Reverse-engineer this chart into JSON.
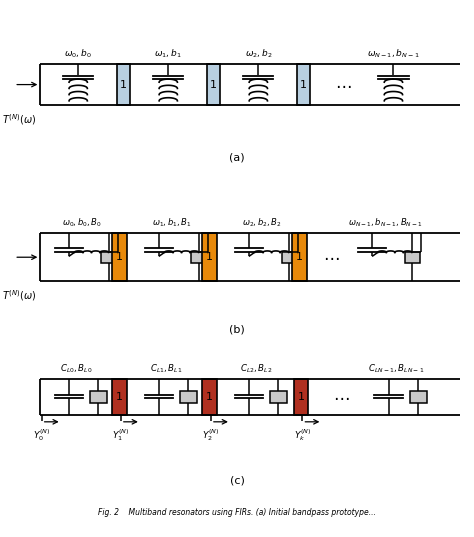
{
  "fig_width": 4.74,
  "fig_height": 5.37,
  "dpi": 100,
  "bg_color": "#ffffff",
  "blue_color": "#b8cfe0",
  "orange_color": "#e8890a",
  "red_color": "#b03020",
  "gray_color": "#c8c8c8",
  "line_color": "#111111",
  "panel_a_label": "(a)",
  "panel_b_label": "(b)",
  "panel_c_label": "(c)",
  "res_labels_a": [
    "$\\omega_0,b_0$",
    "$\\omega_1,b_1$",
    "$\\omega_2,b_2$",
    "$\\omega_{N-1},b_{N-1}$"
  ],
  "res_labels_b": [
    "$\\omega_0,b_0,B_0$",
    "$\\omega_1,b_1,B_1$",
    "$\\omega_2,b_2,B_2$",
    "$\\omega_{N-1},b_{N-1},B_{N-1}$"
  ],
  "res_labels_c": [
    "$C_{L0},B_{L0}$",
    "$C_{L1},B_{L1}$",
    "$C_{L2},B_{L2}$",
    "$C_{LN-1},B_{LN-1}$"
  ],
  "y_labels_c": [
    "$Y_0^{(N)}$",
    "$Y_1^{(N)}$",
    "$Y_2^{(N)}$",
    "$Y_k^{(N)}$"
  ],
  "T_label": "$T^{(N)}(\\omega)$",
  "caption": "Fig. 2    Multiband resonators using FIRs. (a) Initial bandpass prototype..."
}
